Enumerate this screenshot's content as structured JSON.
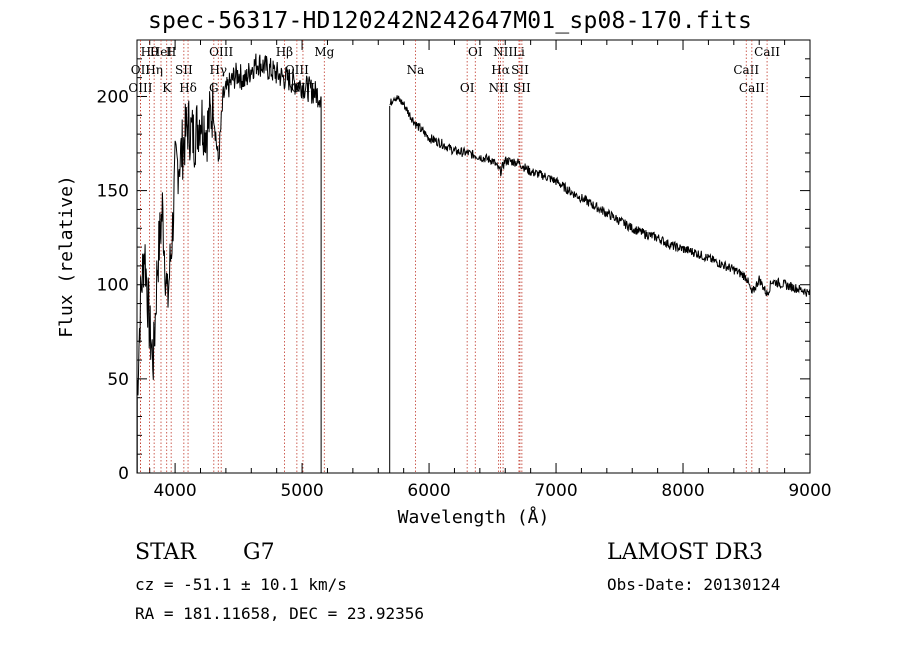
{
  "header": {
    "title": "spec-56317-HD120242N242647M01_sp08-170.fits"
  },
  "info": {
    "object_class": "STAR",
    "subclass": "G7",
    "survey": "LAMOST DR3",
    "redshift_text": "cz = -51.1 ± 10.1 km/s",
    "obs_date_text": "Obs-Date: 20130124",
    "coords_text": "RA = 181.11658, DEC =  23.92356"
  },
  "chart_data": {
    "type": "line",
    "title": "spec-56317-HD120242N242647M01_sp08-170.fits",
    "xlabel": "Wavelength (Å)",
    "ylabel": "Flux (relative)",
    "xlim": [
      3700,
      9000
    ],
    "ylim": [
      0,
      230
    ],
    "xticks": [
      4000,
      5000,
      6000,
      7000,
      8000,
      9000
    ],
    "yticks": [
      0,
      50,
      100,
      150,
      200
    ],
    "grid": false,
    "series": [
      {
        "name": "flux",
        "gap": [
          5150,
          5690
        ],
        "x": [
          3700,
          3730,
          3760,
          3800,
          3830,
          3860,
          3900,
          3940,
          3980,
          4000,
          4050,
          4100,
          4150,
          4200,
          4250,
          4300,
          4340,
          4380,
          4420,
          4460,
          4500,
          4550,
          4600,
          4650,
          4700,
          4750,
          4800,
          4850,
          4900,
          4950,
          5000,
          5050,
          5100,
          5150,
          5690,
          5720,
          5750,
          5800,
          5850,
          5900,
          6000,
          6100,
          6200,
          6300,
          6400,
          6500,
          6563,
          6600,
          6700,
          6800,
          6900,
          7000,
          7100,
          7200,
          7300,
          7400,
          7500,
          7600,
          7700,
          7800,
          7900,
          8000,
          8100,
          8200,
          8300,
          8400,
          8500,
          8542,
          8600,
          8662,
          8700,
          8800,
          8900,
          8950,
          9000
        ],
        "y": [
          40,
          95,
          120,
          75,
          60,
          110,
          140,
          90,
          130,
          160,
          170,
          185,
          178,
          190,
          182,
          195,
          165,
          200,
          205,
          210,
          212,
          208,
          215,
          218,
          216,
          214,
          212,
          210,
          209,
          207,
          206,
          204,
          202,
          200,
          195,
          200,
          199,
          196,
          190,
          185,
          178,
          175,
          171,
          170,
          168,
          166,
          160,
          166,
          165,
          160,
          158,
          155,
          150,
          146,
          142,
          138,
          134,
          130,
          127,
          125,
          121,
          119,
          117,
          114,
          111,
          108,
          104,
          95,
          103,
          95,
          102,
          100,
          98,
          97,
          95
        ]
      }
    ],
    "lines_top": [
      {
        "label": "Hθ",
        "x": 3798
      },
      {
        "label": "OII",
        "x": 3727
      },
      {
        "label": "OIII",
        "x": 3727
      },
      {
        "label": "HeI",
        "x": 3889
      },
      {
        "label": "Hη",
        "x": 3835
      },
      {
        "label": "K",
        "x": 3934
      },
      {
        "label": "H",
        "x": 3969
      },
      {
        "label": "SII",
        "x": 4069
      },
      {
        "label": "Hδ",
        "x": 4102
      },
      {
        "label": "OIII",
        "x": 4363
      },
      {
        "label": "Hγ",
        "x": 4340
      },
      {
        "label": "G",
        "x": 4305
      },
      {
        "label": "Hβ",
        "x": 4861
      },
      {
        "label": "OIII",
        "x": 4959
      },
      {
        "label": "OIII",
        "x": 5007
      },
      {
        "label": "Mg",
        "x": 5175
      },
      {
        "label": "Na",
        "x": 5893
      },
      {
        "label": "OI",
        "x": 6300
      },
      {
        "label": "OI",
        "x": 6364
      },
      {
        "label": "Hα",
        "x": 6563
      },
      {
        "label": "NII",
        "x": 6548
      },
      {
        "label": "NII",
        "x": 6583
      },
      {
        "label": "SII",
        "x": 6716
      },
      {
        "label": "SII",
        "x": 6731
      },
      {
        "label": "Li",
        "x": 6708
      },
      {
        "label": "CaII",
        "x": 8498
      },
      {
        "label": "CaII",
        "x": 8542
      },
      {
        "label": "CaII",
        "x": 8662
      }
    ]
  }
}
